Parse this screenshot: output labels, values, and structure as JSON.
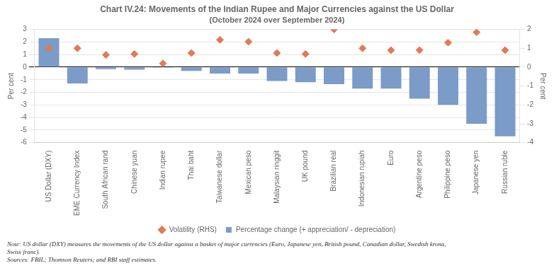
{
  "chart_data": {
    "type": "bar",
    "title": "Chart IV.24: Movements of the Indian Rupee and Major Currencies against the US Dollar",
    "subtitle": "(October 2024 over September 2024)",
    "categories": [
      "US Dollar (DXY)",
      "EME Currency Index",
      "South African rand",
      "Chinese yuan",
      "Indian rupee",
      "Thai baht",
      "Taiwanese dollar",
      "Mexican peso",
      "Malaysian ringgit",
      "UK pound",
      "Brazilian real",
      "Indonesian rupiah",
      "Euro",
      "Argentine peso",
      "Philippine peso",
      "Japanese yen",
      "Russian ruble"
    ],
    "series": [
      {
        "name": "Percentage change (+ appreciation/ - depreciation)",
        "type": "bar",
        "color": "#7b9bc8",
        "values": [
          2.3,
          -1.3,
          -0.15,
          -0.2,
          -0.05,
          -0.3,
          -0.5,
          -0.5,
          -1.1,
          -1.2,
          -1.35,
          -1.7,
          -1.7,
          -2.5,
          -3.0,
          -4.5,
          -5.5
        ]
      },
      {
        "name": "Volatility (RHS)",
        "type": "scatter",
        "marker": "diamond",
        "color": "#e07b54",
        "axis": "y2",
        "values": [
          1.0,
          1.0,
          0.65,
          0.7,
          0.2,
          0.75,
          1.45,
          1.35,
          0.75,
          0.7,
          2.0,
          1.0,
          0.9,
          0.9,
          1.3,
          1.85,
          0.9
        ]
      }
    ],
    "ylabel": "Per cent",
    "y2label": "Per cent",
    "ylim": [
      -6,
      3
    ],
    "yticks": [
      -6,
      -5,
      -4,
      -3,
      -2,
      -1,
      0,
      1,
      2,
      3
    ],
    "y2lim": [
      -4,
      2
    ],
    "y2ticks": [
      -4,
      -3,
      -2,
      -1,
      0,
      1,
      2
    ],
    "grid": true,
    "legend": "bottom",
    "annotations": [
      "Note: US dollar (DXY) measures the movements of the US dollar against a basket of major currencies (Euro, Japanese yen, British pound, Canadian dollar, Swedish krona,\nSwiss franc).",
      "Sources: FBIL; Thomson Reuters; and RBI staff estimates."
    ]
  }
}
